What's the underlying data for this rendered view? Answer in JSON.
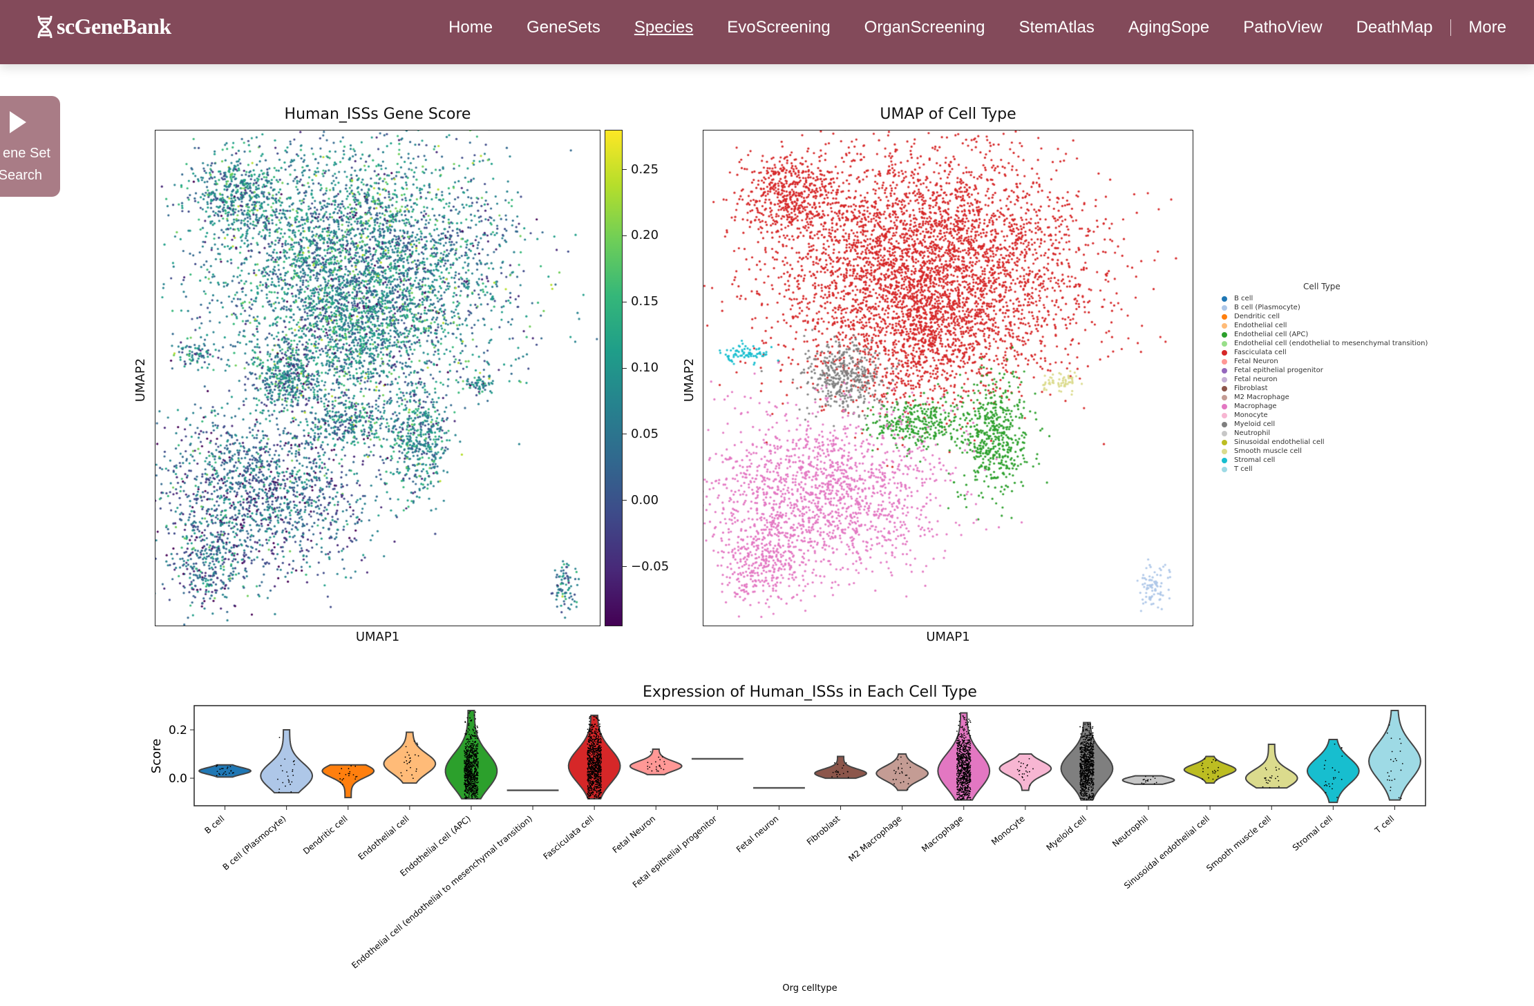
{
  "header": {
    "logo": "scGeneBank",
    "nav": [
      {
        "label": "Home"
      },
      {
        "label": "GeneSets"
      },
      {
        "label": "Species",
        "active": true
      },
      {
        "label": "EvoScreening"
      },
      {
        "label": "OrganScreening"
      },
      {
        "label": "StemAtlas"
      },
      {
        "label": "AgingSope"
      },
      {
        "label": "PathoView"
      },
      {
        "label": "DeathMap"
      },
      {
        "label": "More"
      }
    ],
    "bg_color": "#834a5a"
  },
  "sidetab": {
    "line1": "ene Set",
    "line2": "Search",
    "icon": "play-triangle-icon"
  },
  "chart_data": [
    {
      "type": "scatter",
      "title": "Human_ISSs Gene Score",
      "xlabel": "UMAP1",
      "ylabel": "UMAP2",
      "colormap": "viridis",
      "colorbar": {
        "ticks": [
          "0.25",
          "0.20",
          "0.15",
          "0.10",
          "0.05",
          "0.00",
          "−0.05"
        ],
        "range": [
          -0.095,
          0.28
        ]
      }
    },
    {
      "type": "scatter",
      "title": "UMAP of Cell Type",
      "xlabel": "UMAP1",
      "ylabel": "UMAP2",
      "legend": {
        "title": "Cell Type",
        "placement": "right",
        "items": [
          {
            "label": "B cell",
            "color": "#1f77b4"
          },
          {
            "label": "B cell (Plasmocyte)",
            "color": "#aec7e8"
          },
          {
            "label": "Dendritic cell",
            "color": "#ff7f0e"
          },
          {
            "label": "Endothelial cell",
            "color": "#ffbb78"
          },
          {
            "label": "Endothelial cell (APC)",
            "color": "#2ca02c"
          },
          {
            "label": "Endothelial cell (endothelial to mesenchymal transition)",
            "color": "#98df8a"
          },
          {
            "label": "Fasciculata cell",
            "color": "#d62728"
          },
          {
            "label": "Fetal Neuron",
            "color": "#ff9896"
          },
          {
            "label": "Fetal epithelial progenitor",
            "color": "#9467bd"
          },
          {
            "label": "Fetal neuron",
            "color": "#c5b0d5"
          },
          {
            "label": "Fibroblast",
            "color": "#8c564b"
          },
          {
            "label": "M2 Macrophage",
            "color": "#c49c94"
          },
          {
            "label": "Macrophage",
            "color": "#e377c2"
          },
          {
            "label": "Monocyte",
            "color": "#f7b6d2"
          },
          {
            "label": "Myeloid cell",
            "color": "#7f7f7f"
          },
          {
            "label": "Neutrophil",
            "color": "#c7c7c7"
          },
          {
            "label": "Sinusoidal endothelial cell",
            "color": "#bcbd22"
          },
          {
            "label": "Smooth muscle cell",
            "color": "#dbdb8d"
          },
          {
            "label": "Stromal cell",
            "color": "#17becf"
          },
          {
            "label": "T cell",
            "color": "#9edae5"
          }
        ]
      }
    },
    {
      "type": "violin",
      "title": "Expression of Human_ISSs in Each Cell Type",
      "xlabel": "Org celltype",
      "ylabel": "Score",
      "ylim": [
        -0.114,
        0.3
      ],
      "yticks": [
        "0.0",
        "0.2"
      ],
      "categories": [
        "B cell",
        "B cell (Plasmocyte)",
        "Dendritic cell",
        "Endothelial cell",
        "Endothelial cell (APC)",
        "Endothelial cell (endothelial to mesenchymal transition)",
        "Fasciculata cell",
        "Fetal Neuron",
        "Fetal epithelial progenitor",
        "Fetal neuron",
        "Fibroblast",
        "M2 Macrophage",
        "Macrophage",
        "Monocyte",
        "Myeloid cell",
        "Neutrophil",
        "Sinusoidal endothelial cell",
        "Smooth muscle cell",
        "Stromal cell",
        "T cell"
      ],
      "series": [
        {
          "min": 0.005,
          "max": 0.055,
          "peak": 0.03
        },
        {
          "min": -0.06,
          "max": 0.2,
          "peak": 0.01
        },
        {
          "min": -0.08,
          "max": 0.055,
          "peak": 0.03
        },
        {
          "min": -0.02,
          "max": 0.19,
          "peak": 0.06
        },
        {
          "min": -0.085,
          "max": 0.28,
          "peak": 0.03
        },
        {
          "min": -0.05,
          "max": -0.05,
          "peak": -0.05
        },
        {
          "min": -0.085,
          "max": 0.26,
          "peak": 0.05
        },
        {
          "min": 0.015,
          "max": 0.12,
          "peak": 0.05
        },
        {
          "min": 0.08,
          "max": 0.08,
          "peak": 0.08
        },
        {
          "min": -0.04,
          "max": -0.04,
          "peak": -0.04
        },
        {
          "min": 0.0,
          "max": 0.09,
          "peak": 0.02
        },
        {
          "min": -0.05,
          "max": 0.1,
          "peak": 0.02
        },
        {
          "min": -0.09,
          "max": 0.27,
          "peak": 0.03
        },
        {
          "min": -0.05,
          "max": 0.1,
          "peak": 0.04
        },
        {
          "min": -0.09,
          "max": 0.23,
          "peak": 0.04
        },
        {
          "min": -0.025,
          "max": 0.01,
          "peak": -0.008
        },
        {
          "min": -0.02,
          "max": 0.09,
          "peak": 0.035
        },
        {
          "min": -0.04,
          "max": 0.14,
          "peak": 0.0
        },
        {
          "min": -0.1,
          "max": 0.16,
          "peak": 0.03
        },
        {
          "min": -0.09,
          "max": 0.28,
          "peak": 0.07
        }
      ]
    }
  ]
}
